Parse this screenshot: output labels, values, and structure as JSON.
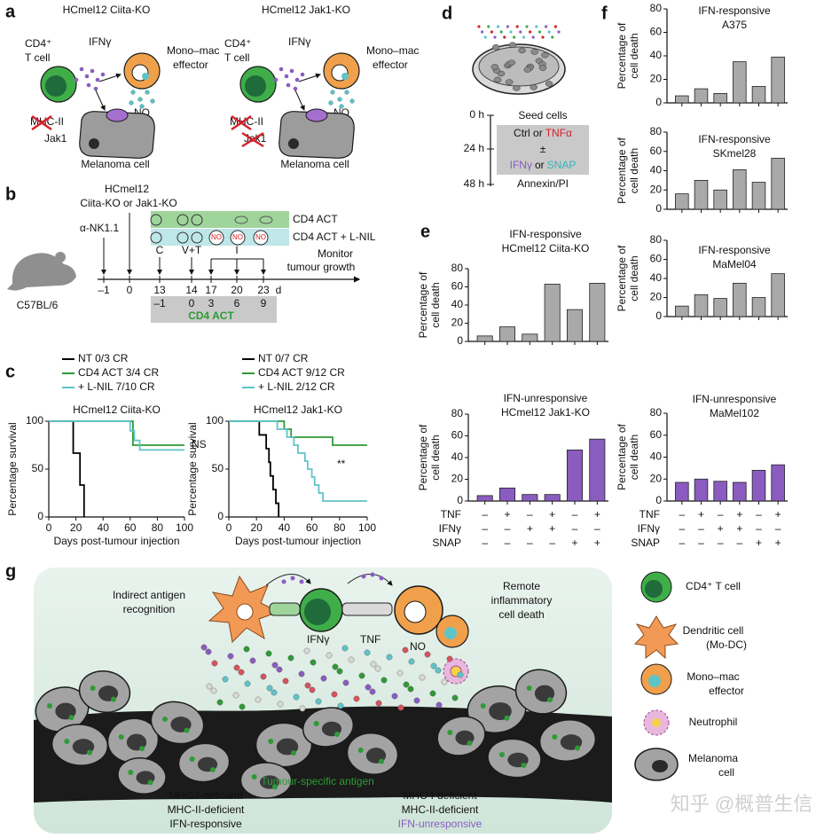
{
  "panel_labels": [
    "a",
    "b",
    "c",
    "d",
    "e",
    "f",
    "g"
  ],
  "panel_a": {
    "left": {
      "title": "HCmel12 Ciita-KO",
      "t_cell": [
        "CD4⁺",
        "T cell"
      ],
      "cytokine": "IFNγ",
      "effector": [
        "Mono–mac",
        "effector"
      ],
      "no": "NO",
      "mhc": "MHC-II",
      "jak": "Jak1",
      "target": "Melanoma cell"
    },
    "right": {
      "title": "HCmel12 Jak1-KO",
      "t_cell": [
        "CD4⁺",
        "T cell"
      ],
      "cytokine": "IFNγ",
      "effector": [
        "Mono–mac",
        "effector"
      ],
      "no": "NO",
      "mhc": "MHC-II",
      "jak": "Jak1",
      "target": "Melanoma cell"
    }
  },
  "panel_b": {
    "tumour": [
      "HCmel12",
      "Ciita-KO or Jak1-KO"
    ],
    "groups": [
      "CD4 ACT",
      "CD4 ACT + L-NIL"
    ],
    "antibody": "α-NK1.1",
    "events": [
      "C",
      "V+T",
      "I"
    ],
    "monitor": [
      "Monitor",
      "tumour growth"
    ],
    "mouse": "C57BL/6",
    "days": [
      "–1",
      "0",
      "13",
      "14",
      "17",
      "20",
      "23"
    ],
    "unit": "d",
    "act_days": [
      "–1",
      "0",
      "3",
      "6",
      "9"
    ],
    "act_label": "CD4 ACT",
    "no_symbol": "NO"
  },
  "panel_d": {
    "times": [
      "0 h",
      "24 h",
      "48 h"
    ],
    "seed": "Seed cells",
    "ctrl": "Ctrl or",
    "tnf": "TNFα",
    "pm": "±",
    "ifn": "IFNγ",
    "or": "or",
    "snap": "SNAP",
    "readout": "Annexin/PI"
  },
  "chart_data": [
    {
      "type": "line",
      "title": "HCmel12 Ciita-KO",
      "xlabel": "Days post-tumour injection",
      "ylabel": "Percentage survival",
      "xlim": [
        0,
        100
      ],
      "ylim": [
        0,
        100
      ],
      "xticks": [
        0,
        20,
        40,
        60,
        80,
        100
      ],
      "yticks": [
        0,
        50,
        100
      ],
      "annotation": "NS",
      "series": [
        {
          "name": "NT 0/3 CR",
          "color": "#000000",
          "x": [
            0,
            18,
            23,
            26
          ],
          "values": [
            100,
            66.7,
            33.3,
            0
          ]
        },
        {
          "name": "CD4 ACT 3/4 CR",
          "color": "#2e9a36",
          "x": [
            0,
            62,
            100
          ],
          "values": [
            100,
            75,
            75
          ]
        },
        {
          "name": "+ L-NIL 7/10 CR",
          "color": "#5ec4c8",
          "x": [
            0,
            60,
            63,
            67,
            100
          ],
          "values": [
            100,
            90,
            80,
            70,
            70
          ]
        }
      ]
    },
    {
      "type": "line",
      "title": "HCmel12 Jak1-KO",
      "xlabel": "Days post-tumour injection",
      "ylabel": "Percentage survival",
      "xlim": [
        0,
        100
      ],
      "ylim": [
        0,
        100
      ],
      "xticks": [
        0,
        20,
        40,
        60,
        80,
        100
      ],
      "yticks": [
        0,
        50,
        100
      ],
      "annotation": "**",
      "series": [
        {
          "name": "NT 0/7 CR",
          "color": "#000000",
          "x": [
            0,
            22,
            27,
            29,
            30,
            32,
            34,
            36
          ],
          "values": [
            100,
            85.7,
            71.4,
            57.1,
            42.9,
            28.6,
            14.3,
            0
          ]
        },
        {
          "name": "CD4 ACT 9/12 CR",
          "color": "#2e9a36",
          "x": [
            0,
            40,
            45,
            75,
            100
          ],
          "values": [
            100,
            91.7,
            83.3,
            75,
            75
          ]
        },
        {
          "name": "+ L-NIL 2/12 CR",
          "color": "#5ec4c8",
          "x": [
            0,
            35,
            42,
            47,
            50,
            55,
            57,
            60,
            62,
            65,
            68,
            100
          ],
          "values": [
            100,
            91.7,
            83.3,
            75,
            66.7,
            58.3,
            50,
            41.7,
            33.3,
            25,
            16.7,
            16.7
          ]
        }
      ]
    },
    {
      "type": "bar",
      "title": [
        "IFN-responsive",
        "HCmel12 Ciita-KO"
      ],
      "ylabel": [
        "Percentage of",
        "cell death"
      ],
      "ylim": [
        0,
        80
      ],
      "yticks": [
        0,
        20,
        40,
        60,
        80
      ],
      "color": "#a9a9a9",
      "values": [
        6,
        16,
        8,
        63,
        35,
        64
      ]
    },
    {
      "type": "bar",
      "title": [
        "IFN-unresponsive",
        "HCmel12 Jak1-KO"
      ],
      "ylabel": [
        "Percentage of",
        "cell death"
      ],
      "ylim": [
        0,
        80
      ],
      "yticks": [
        0,
        20,
        40,
        60,
        80
      ],
      "color": "#8a5cc0",
      "values": [
        5,
        12,
        6,
        6,
        47,
        57
      ],
      "conditions": [
        {
          "label": "TNF",
          "signs": [
            "–",
            "+",
            "–",
            "+",
            "–",
            "+"
          ]
        },
        {
          "label": "IFNγ",
          "signs": [
            "–",
            "–",
            "+",
            "+",
            "–",
            "–"
          ]
        },
        {
          "label": "SNAP",
          "signs": [
            "–",
            "–",
            "–",
            "–",
            "+",
            "+"
          ]
        }
      ]
    },
    {
      "type": "bar",
      "title": [
        "IFN-responsive",
        "A375"
      ],
      "ylabel": [
        "Percentage of",
        "cell death"
      ],
      "ylim": [
        0,
        80
      ],
      "yticks": [
        0,
        20,
        40,
        60,
        80
      ],
      "color": "#a9a9a9",
      "values": [
        6,
        12,
        8,
        35,
        14,
        39
      ]
    },
    {
      "type": "bar",
      "title": [
        "IFN-responsive",
        "SKmel28"
      ],
      "ylabel": [
        "Percentage of",
        "cell death"
      ],
      "ylim": [
        0,
        80
      ],
      "yticks": [
        0,
        20,
        40,
        60,
        80
      ],
      "color": "#a9a9a9",
      "values": [
        16,
        30,
        20,
        41,
        28,
        53
      ]
    },
    {
      "type": "bar",
      "title": [
        "IFN-responsive",
        "MaMel04"
      ],
      "ylabel": [
        "Percentage of",
        "cell death"
      ],
      "ylim": [
        0,
        80
      ],
      "yticks": [
        0,
        20,
        40,
        60,
        80
      ],
      "color": "#a9a9a9",
      "values": [
        11,
        23,
        19,
        35,
        20,
        45
      ]
    },
    {
      "type": "bar",
      "title": [
        "IFN-unresponsive",
        "MaMel102"
      ],
      "ylabel": [
        "Percentage of",
        "cell death"
      ],
      "ylim": [
        0,
        80
      ],
      "yticks": [
        0,
        20,
        40,
        60,
        80
      ],
      "color": "#8a5cc0",
      "values": [
        17,
        20,
        18,
        17,
        28,
        33
      ],
      "conditions": [
        {
          "label": "TNF",
          "signs": [
            "–",
            "+",
            "–",
            "+",
            "–",
            "+"
          ]
        },
        {
          "label": "IFNγ",
          "signs": [
            "–",
            "–",
            "+",
            "+",
            "–",
            "–"
          ]
        },
        {
          "label": "SNAP",
          "signs": [
            "–",
            "–",
            "–",
            "–",
            "+",
            "+"
          ]
        }
      ]
    }
  ],
  "panel_g": {
    "left_label": [
      "Indirect antigen",
      "recognition"
    ],
    "right_label": [
      "Remote",
      "inflammatory",
      "cell death"
    ],
    "cytokines": [
      "IFNγ",
      "TNF",
      "NO"
    ],
    "antigen": "Tumour-specific antigen",
    "left_phenotype": [
      "MHC-I-deficient",
      "MHC-II-deficient",
      "IFN-responsive"
    ],
    "right_phenotype": [
      "MHC-I-deficient",
      "MHC-II-deficient",
      "IFN-unresponsive"
    ],
    "legend": [
      [
        "CD4⁺ T cell"
      ],
      [
        "Dendritic cell",
        "(Mo-DC)"
      ],
      [
        "Mono–mac",
        "effector"
      ],
      [
        "Neutrophil"
      ],
      [
        "Melanoma",
        "cell"
      ]
    ]
  },
  "watermark": "知乎 @概普生信"
}
